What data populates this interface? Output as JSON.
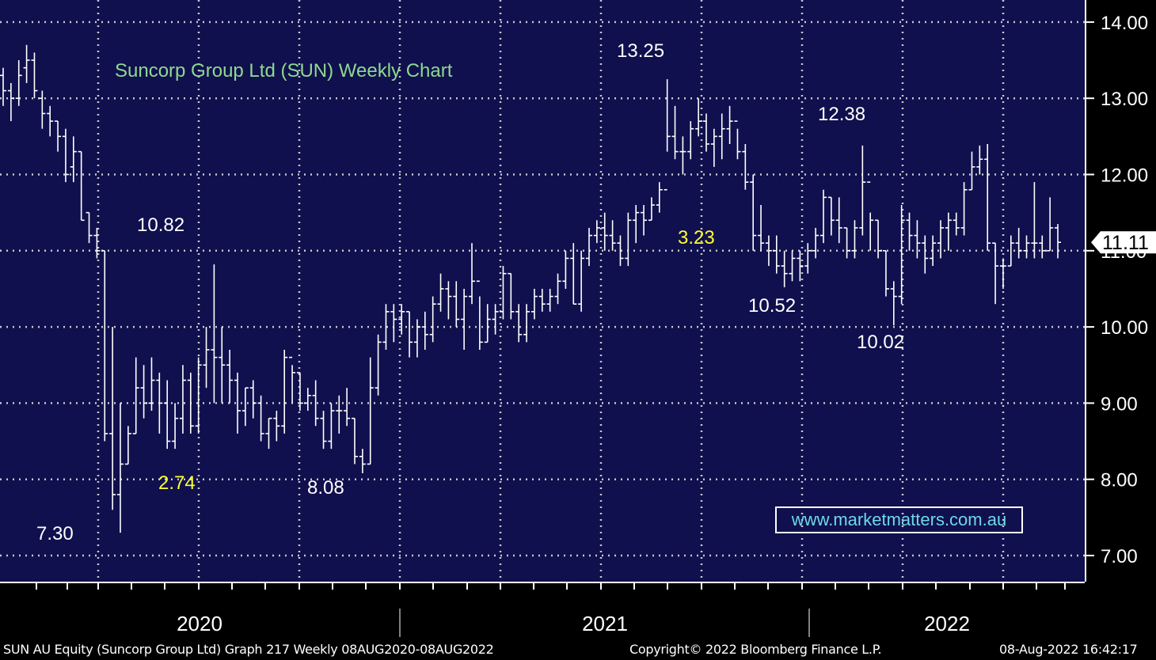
{
  "chart_data": {
    "type": "ohlc",
    "title": "Suncorp Group Ltd (SUN) Weekly Chart",
    "ylim": [
      6.7,
      14.3
    ],
    "yticks": [
      7,
      8,
      9,
      10,
      11,
      12,
      13,
      14
    ],
    "ytick_labels": [
      "7.00",
      "8.00",
      "9.00",
      "10.00",
      "11.00",
      "12.00",
      "13.00",
      "14.00"
    ],
    "year_labels": [
      "2020",
      "2021",
      "2022"
    ],
    "last_price": "11.11",
    "series": [
      {
        "name": "",
        "values": [
          [
            13.3,
            13.4,
            12.9,
            13.1
          ],
          [
            13.1,
            13.2,
            12.7,
            13.0
          ],
          [
            13.0,
            13.5,
            12.9,
            13.3
          ],
          [
            13.4,
            13.7,
            13.2,
            13.5
          ],
          [
            13.5,
            13.6,
            13.0,
            13.1
          ],
          [
            13.0,
            13.1,
            12.6,
            12.8
          ],
          [
            12.8,
            12.9,
            12.5,
            12.7
          ],
          [
            12.7,
            12.7,
            12.3,
            12.5
          ],
          [
            12.5,
            12.6,
            11.9,
            12.0
          ],
          [
            12.1,
            12.5,
            11.9,
            12.3
          ],
          [
            12.3,
            12.3,
            11.4,
            11.4
          ],
          [
            11.5,
            11.5,
            11.1,
            11.2
          ],
          [
            11.2,
            11.3,
            10.9,
            11.0
          ],
          [
            11.0,
            11.0,
            8.5,
            8.6
          ],
          [
            8.6,
            10.0,
            7.6,
            7.8
          ],
          [
            7.8,
            9.0,
            7.3,
            8.2
          ],
          [
            8.2,
            8.7,
            8.2,
            8.6
          ],
          [
            8.6,
            9.6,
            8.6,
            9.2
          ],
          [
            9.2,
            9.5,
            8.8,
            9.0
          ],
          [
            9.0,
            9.6,
            8.9,
            9.3
          ],
          [
            9.3,
            9.4,
            8.6,
            9.0
          ],
          [
            9.0,
            9.3,
            8.4,
            8.5
          ],
          [
            8.5,
            9.0,
            8.4,
            8.8
          ],
          [
            8.8,
            9.5,
            8.6,
            9.3
          ],
          [
            9.3,
            9.4,
            8.6,
            8.7
          ],
          [
            8.7,
            9.6,
            8.6,
            9.5
          ],
          [
            9.5,
            10.0,
            9.2,
            9.7
          ],
          [
            9.7,
            10.82,
            9.0,
            9.6
          ],
          [
            9.6,
            10.0,
            9.0,
            9.5
          ],
          [
            9.5,
            9.7,
            9.0,
            9.3
          ],
          [
            9.3,
            9.4,
            8.6,
            8.9
          ],
          [
            8.9,
            9.2,
            8.7,
            9.2
          ],
          [
            9.2,
            9.3,
            8.8,
            9.0
          ],
          [
            9.0,
            9.1,
            8.5,
            8.6
          ],
          [
            8.6,
            8.8,
            8.4,
            8.8
          ],
          [
            8.8,
            8.9,
            8.5,
            8.7
          ],
          [
            8.7,
            9.7,
            8.6,
            9.6
          ],
          [
            9.6,
            9.5,
            9.0,
            9.4
          ],
          [
            9.4,
            9.4,
            8.9,
            9.0
          ],
          [
            9.0,
            9.2,
            8.9,
            9.1
          ],
          [
            9.1,
            9.3,
            8.7,
            8.8
          ],
          [
            8.8,
            8.9,
            8.4,
            8.5
          ],
          [
            8.5,
            9.0,
            8.4,
            8.9
          ],
          [
            8.9,
            9.1,
            8.6,
            8.9
          ],
          [
            8.9,
            9.2,
            8.7,
            8.8
          ],
          [
            8.8,
            8.8,
            8.2,
            8.3
          ],
          [
            8.3,
            8.4,
            8.08,
            8.2
          ],
          [
            8.2,
            9.6,
            8.2,
            9.2
          ],
          [
            9.2,
            9.9,
            9.1,
            9.8
          ],
          [
            9.8,
            10.3,
            9.7,
            10.2
          ],
          [
            10.2,
            10.3,
            9.8,
            10.1
          ],
          [
            10.1,
            10.3,
            9.9,
            10.2
          ],
          [
            10.2,
            10.2,
            9.6,
            9.8
          ],
          [
            9.8,
            10.1,
            9.6,
            10.0
          ],
          [
            10.0,
            10.2,
            9.7,
            9.9
          ],
          [
            9.9,
            10.4,
            9.8,
            10.3
          ],
          [
            10.3,
            10.7,
            10.2,
            10.5
          ],
          [
            10.5,
            10.6,
            10.1,
            10.4
          ],
          [
            10.4,
            10.6,
            10.0,
            10.1
          ],
          [
            10.1,
            10.5,
            9.7,
            10.4
          ],
          [
            10.4,
            11.1,
            10.3,
            10.6
          ],
          [
            10.6,
            10.4,
            9.7,
            9.8
          ],
          [
            9.8,
            10.3,
            9.8,
            10.1
          ],
          [
            10.1,
            10.3,
            9.9,
            10.2
          ],
          [
            10.2,
            10.8,
            10.1,
            10.7
          ],
          [
            10.7,
            10.7,
            10.1,
            10.2
          ],
          [
            10.2,
            10.3,
            9.8,
            9.9
          ],
          [
            9.9,
            10.3,
            9.8,
            10.2
          ],
          [
            10.2,
            10.5,
            10.1,
            10.4
          ],
          [
            10.4,
            10.5,
            10.2,
            10.3
          ],
          [
            10.3,
            10.5,
            10.2,
            10.4
          ],
          [
            10.4,
            10.7,
            10.3,
            10.6
          ],
          [
            10.6,
            11.0,
            10.5,
            10.9
          ],
          [
            10.9,
            11.1,
            10.3,
            10.3
          ],
          [
            10.3,
            11.0,
            10.2,
            10.9
          ],
          [
            10.9,
            11.3,
            10.8,
            11.2
          ],
          [
            11.2,
            11.4,
            11.1,
            11.3
          ],
          [
            11.3,
            11.5,
            11.0,
            11.2
          ],
          [
            11.2,
            11.4,
            11.0,
            11.1
          ],
          [
            11.1,
            11.2,
            10.8,
            10.9
          ],
          [
            10.9,
            11.5,
            10.8,
            11.4
          ],
          [
            11.4,
            11.6,
            11.1,
            11.5
          ],
          [
            11.5,
            11.6,
            11.2,
            11.4
          ],
          [
            11.4,
            11.7,
            11.4,
            11.6
          ],
          [
            11.6,
            11.9,
            11.5,
            11.8
          ],
          [
            11.8,
            13.25,
            12.3,
            12.5
          ],
          [
            12.5,
            12.9,
            12.2,
            12.3
          ],
          [
            12.3,
            12.5,
            12.0,
            12.3
          ],
          [
            12.3,
            12.7,
            12.2,
            12.6
          ],
          [
            12.6,
            13.0,
            12.5,
            12.7
          ],
          [
            12.7,
            12.8,
            12.3,
            12.4
          ],
          [
            12.4,
            12.6,
            12.1,
            12.5
          ],
          [
            12.5,
            12.8,
            12.2,
            12.6
          ],
          [
            12.6,
            12.9,
            12.4,
            12.7
          ],
          [
            12.7,
            12.6,
            12.2,
            12.3
          ],
          [
            12.3,
            12.4,
            11.8,
            11.9
          ],
          [
            11.9,
            12.0,
            11.0,
            11.2
          ],
          [
            11.2,
            11.6,
            11.0,
            11.1
          ],
          [
            11.1,
            11.2,
            10.8,
            11.0
          ],
          [
            11.0,
            11.2,
            10.7,
            10.8
          ],
          [
            10.8,
            11.0,
            10.52,
            10.7
          ],
          [
            10.7,
            11.0,
            10.6,
            10.9
          ],
          [
            10.9,
            11.0,
            10.6,
            10.8
          ],
          [
            10.8,
            11.1,
            10.7,
            11.0
          ],
          [
            11.0,
            11.3,
            10.9,
            11.2
          ],
          [
            11.2,
            11.8,
            11.1,
            11.7
          ],
          [
            11.7,
            11.7,
            11.2,
            11.4
          ],
          [
            11.4,
            11.7,
            11.1,
            11.3
          ],
          [
            11.3,
            11.3,
            10.9,
            11.0
          ],
          [
            11.0,
            11.4,
            10.9,
            11.3
          ],
          [
            11.3,
            12.38,
            11.2,
            11.9
          ],
          [
            11.9,
            11.5,
            11.0,
            11.4
          ],
          [
            11.4,
            11.4,
            10.9,
            11.0
          ],
          [
            11.0,
            11.0,
            10.4,
            10.5
          ],
          [
            10.5,
            10.6,
            10.02,
            10.4
          ],
          [
            10.4,
            11.6,
            10.3,
            11.4
          ],
          [
            11.4,
            11.5,
            11.0,
            11.2
          ],
          [
            11.2,
            11.4,
            10.9,
            11.1
          ],
          [
            11.1,
            11.2,
            10.7,
            10.9
          ],
          [
            10.9,
            11.2,
            10.8,
            11.1
          ],
          [
            11.1,
            11.4,
            10.9,
            11.3
          ],
          [
            11.3,
            11.5,
            11.0,
            11.4
          ],
          [
            11.4,
            11.5,
            11.2,
            11.3
          ],
          [
            11.3,
            11.9,
            11.2,
            11.8
          ],
          [
            11.8,
            12.3,
            11.8,
            12.1
          ],
          [
            12.1,
            12.38,
            12.0,
            12.2
          ],
          [
            12.2,
            12.4,
            11.0,
            11.1
          ],
          [
            11.1,
            11.1,
            10.3,
            10.8
          ],
          [
            10.8,
            10.9,
            10.5,
            10.8
          ],
          [
            10.8,
            11.2,
            10.8,
            11.1
          ],
          [
            11.1,
            11.3,
            10.9,
            11.0
          ],
          [
            11.0,
            11.2,
            10.9,
            11.1
          ],
          [
            11.1,
            11.9,
            10.9,
            11.1
          ],
          [
            11.1,
            11.2,
            10.9,
            11.0
          ],
          [
            11.0,
            11.7,
            11.0,
            11.3
          ],
          [
            11.3,
            11.35,
            10.9,
            11.11
          ]
        ]
      }
    ],
    "annotations": [
      {
        "text": "13.25",
        "color": "#ffffff",
        "value": 13.25
      },
      {
        "text": "12.38",
        "color": "#ffffff",
        "value": 12.38
      },
      {
        "text": "10.82",
        "color": "#ffffff",
        "value": 10.82
      },
      {
        "text": "3.23",
        "color": "#ffff33"
      },
      {
        "text": "10.52",
        "color": "#ffffff",
        "value": 10.52
      },
      {
        "text": "10.02",
        "color": "#ffffff",
        "value": 10.02
      },
      {
        "text": "2.74",
        "color": "#ffff33"
      },
      {
        "text": "8.08",
        "color": "#ffffff",
        "value": 8.08
      },
      {
        "text": "7.30",
        "color": "#ffffff",
        "value": 7.3
      }
    ]
  },
  "website": "www.marketmatters.com.au",
  "footer": {
    "left": "SUN AU Equity (Suncorp Group Ltd) Graph 217  Weekly 08AUG2020-08AUG2022",
    "center": "Copyright© 2022 Bloomberg Finance L.P.",
    "right": "08-Aug-2022 16:42:17"
  },
  "colors": {
    "background": "#10104e",
    "bars": "#ffffff",
    "grid": "#c8c8c8",
    "title": "#8fd98f",
    "highlight": "#ffff33",
    "website": "#6fd8e8"
  }
}
